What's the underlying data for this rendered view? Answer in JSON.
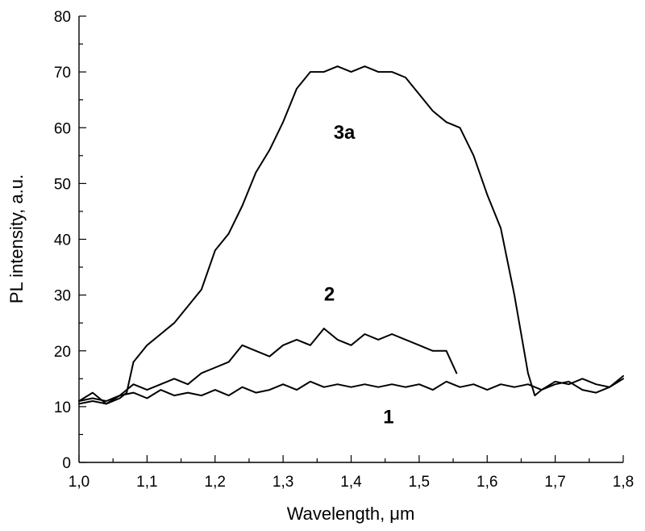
{
  "chart_data": {
    "type": "line",
    "xlabel": "Wavelength, μm",
    "ylabel": "PL intensity, a.u.",
    "xlim": [
      1.0,
      1.8
    ],
    "ylim": [
      0,
      80
    ],
    "x_ticks": [
      1.0,
      1.1,
      1.2,
      1.3,
      1.4,
      1.5,
      1.6,
      1.7,
      1.8
    ],
    "x_tick_labels": [
      "1,0",
      "1,1",
      "1,2",
      "1,3",
      "1,4",
      "1,5",
      "1,6",
      "1,7",
      "1,8"
    ],
    "y_ticks": [
      0,
      10,
      20,
      30,
      40,
      50,
      60,
      70,
      80
    ],
    "y_tick_labels": [
      "0",
      "10",
      "20",
      "30",
      "40",
      "50",
      "60",
      "70",
      "80"
    ],
    "grid": false,
    "series": [
      {
        "name": "1",
        "label_anchor": [
          1.455,
          7
        ],
        "points": [
          [
            1.0,
            11
          ],
          [
            1.02,
            12.5
          ],
          [
            1.04,
            10.5
          ],
          [
            1.06,
            12
          ],
          [
            1.08,
            12.5
          ],
          [
            1.1,
            11.5
          ],
          [
            1.12,
            13
          ],
          [
            1.14,
            12
          ],
          [
            1.16,
            12.5
          ],
          [
            1.18,
            12
          ],
          [
            1.2,
            13
          ],
          [
            1.22,
            12
          ],
          [
            1.24,
            13.5
          ],
          [
            1.26,
            12.5
          ],
          [
            1.28,
            13
          ],
          [
            1.3,
            14
          ],
          [
            1.32,
            13
          ],
          [
            1.34,
            14.5
          ],
          [
            1.36,
            13.5
          ],
          [
            1.38,
            14
          ],
          [
            1.4,
            13.5
          ],
          [
            1.42,
            14
          ],
          [
            1.44,
            13.5
          ],
          [
            1.46,
            14
          ],
          [
            1.48,
            13.5
          ],
          [
            1.5,
            14
          ],
          [
            1.52,
            13
          ],
          [
            1.54,
            14.5
          ],
          [
            1.56,
            13.5
          ],
          [
            1.58,
            14
          ],
          [
            1.6,
            13
          ],
          [
            1.62,
            14
          ],
          [
            1.64,
            13.5
          ],
          [
            1.66,
            14
          ],
          [
            1.68,
            13
          ],
          [
            1.7,
            14
          ],
          [
            1.72,
            14.5
          ],
          [
            1.74,
            13
          ],
          [
            1.76,
            12.5
          ],
          [
            1.78,
            13.5
          ],
          [
            1.8,
            15
          ]
        ]
      },
      {
        "name": "2",
        "label_anchor": [
          1.368,
          29
        ],
        "points": [
          [
            1.0,
            11
          ],
          [
            1.02,
            11.5
          ],
          [
            1.04,
            11
          ],
          [
            1.06,
            12
          ],
          [
            1.08,
            14
          ],
          [
            1.1,
            13
          ],
          [
            1.12,
            14
          ],
          [
            1.14,
            15
          ],
          [
            1.16,
            14
          ],
          [
            1.18,
            16
          ],
          [
            1.2,
            17
          ],
          [
            1.22,
            18
          ],
          [
            1.24,
            21
          ],
          [
            1.26,
            20
          ],
          [
            1.28,
            19
          ],
          [
            1.3,
            21
          ],
          [
            1.32,
            22
          ],
          [
            1.34,
            21
          ],
          [
            1.36,
            24
          ],
          [
            1.38,
            22
          ],
          [
            1.4,
            21
          ],
          [
            1.42,
            23
          ],
          [
            1.44,
            22
          ],
          [
            1.46,
            23
          ],
          [
            1.48,
            22
          ],
          [
            1.5,
            21
          ],
          [
            1.52,
            20
          ],
          [
            1.54,
            20
          ],
          [
            1.555,
            16
          ]
        ]
      },
      {
        "name": "3a",
        "label_anchor": [
          1.39,
          58
        ],
        "points": [
          [
            1.0,
            10.5
          ],
          [
            1.02,
            11
          ],
          [
            1.04,
            10.5
          ],
          [
            1.06,
            11.5
          ],
          [
            1.07,
            12.5
          ],
          [
            1.08,
            18
          ],
          [
            1.1,
            21
          ],
          [
            1.12,
            23
          ],
          [
            1.14,
            25
          ],
          [
            1.16,
            28
          ],
          [
            1.18,
            31
          ],
          [
            1.2,
            38
          ],
          [
            1.22,
            41
          ],
          [
            1.24,
            46
          ],
          [
            1.26,
            52
          ],
          [
            1.28,
            56
          ],
          [
            1.3,
            61
          ],
          [
            1.32,
            67
          ],
          [
            1.34,
            70
          ],
          [
            1.36,
            70
          ],
          [
            1.38,
            71
          ],
          [
            1.4,
            70
          ],
          [
            1.42,
            71
          ],
          [
            1.44,
            70
          ],
          [
            1.46,
            70
          ],
          [
            1.48,
            69
          ],
          [
            1.5,
            66
          ],
          [
            1.52,
            63
          ],
          [
            1.54,
            61
          ],
          [
            1.56,
            60
          ],
          [
            1.58,
            55
          ],
          [
            1.6,
            48
          ],
          [
            1.62,
            42
          ],
          [
            1.64,
            30
          ],
          [
            1.66,
            16
          ],
          [
            1.67,
            12
          ],
          [
            1.68,
            13
          ],
          [
            1.7,
            14.5
          ],
          [
            1.72,
            14
          ],
          [
            1.74,
            15
          ],
          [
            1.76,
            14
          ],
          [
            1.78,
            13.5
          ],
          [
            1.8,
            15.5
          ]
        ]
      }
    ]
  }
}
